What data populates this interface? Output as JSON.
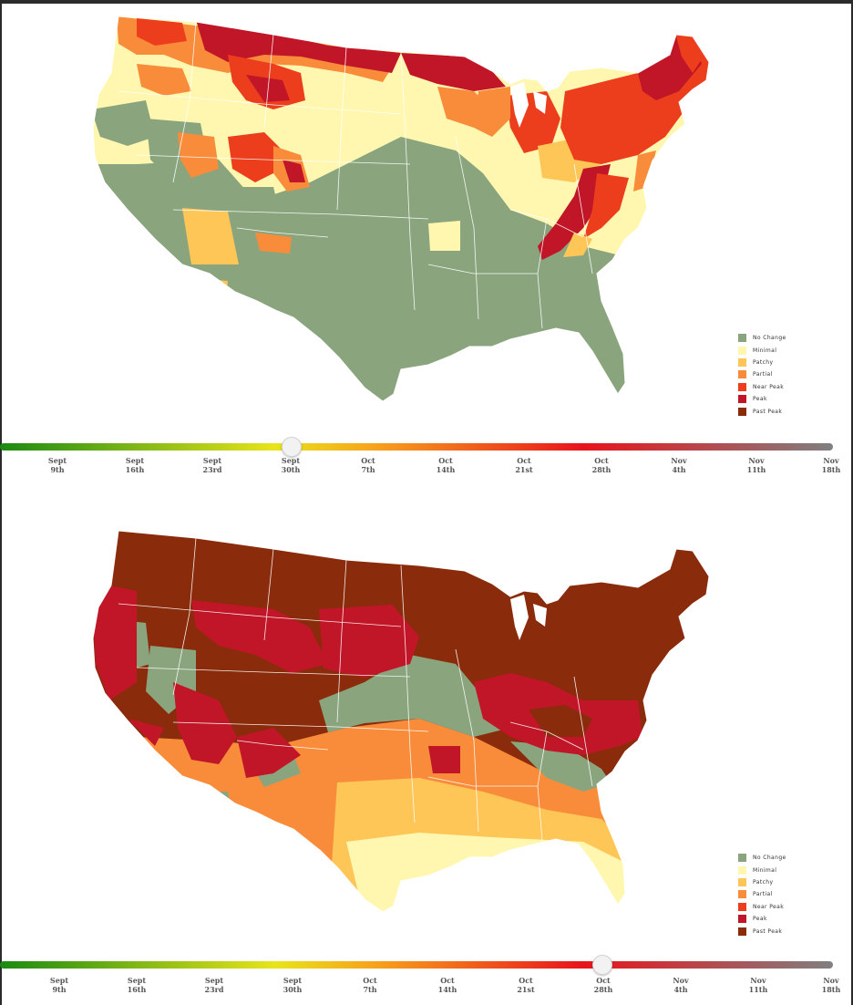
{
  "colors": {
    "no_change": "#8aa57e",
    "minimal": "#fff7b0",
    "patchy": "#fdc657",
    "partial": "#f88c3a",
    "near_peak": "#ec3d1d",
    "peak": "#c01628",
    "past_peak": "#8a2b0c"
  },
  "legend": {
    "items": [
      {
        "label": "No Change",
        "color": "#8aa57e"
      },
      {
        "label": "Minimal",
        "color": "#fff7b0"
      },
      {
        "label": "Patchy",
        "color": "#fdc657"
      },
      {
        "label": "Partial",
        "color": "#f88c3a"
      },
      {
        "label": "Near Peak",
        "color": "#ec3d1d"
      },
      {
        "label": "Peak",
        "color": "#c01628"
      },
      {
        "label": "Past Peak",
        "color": "#8a2b0c"
      }
    ]
  },
  "timeline": {
    "ticks": [
      {
        "month": "Sept",
        "day": "9th"
      },
      {
        "month": "Sept",
        "day": "16th"
      },
      {
        "month": "Sept",
        "day": "23rd"
      },
      {
        "month": "Sept",
        "day": "30th"
      },
      {
        "month": "Oct",
        "day": "7th"
      },
      {
        "month": "Oct",
        "day": "14th"
      },
      {
        "month": "Oct",
        "day": "21st"
      },
      {
        "month": "Oct",
        "day": "28th"
      },
      {
        "month": "Nov",
        "day": "4th"
      },
      {
        "month": "Nov",
        "day": "11th"
      },
      {
        "month": "Nov",
        "day": "18th"
      }
    ]
  },
  "maps": [
    {
      "selected_tick": 3
    },
    {
      "selected_tick": 7
    }
  ]
}
